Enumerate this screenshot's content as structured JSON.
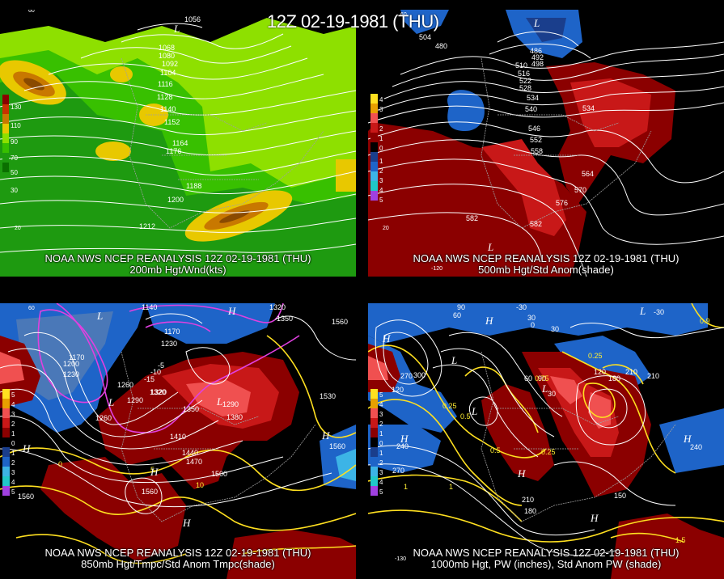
{
  "main_title": "12Z 02-19-1981 (THU)",
  "panels": [
    {
      "id": "p200",
      "caption_1": "NOAA NWS NCEP REANALYSIS 12Z 02-19-1981 (THU)",
      "caption_2": "200mb Hgt/Wnd(kts)",
      "legend": [
        "130",
        "110",
        "90",
        "70",
        "50",
        "30"
      ],
      "contours": [
        "1056",
        "1068",
        "1080",
        "1092",
        "1104",
        "1116",
        "1128",
        "1140",
        "1152",
        "1164",
        "1176",
        "1188",
        "1200",
        "1212"
      ],
      "highs_lows": [
        "L"
      ],
      "lat_lon": [
        "60",
        "20"
      ]
    },
    {
      "id": "p500",
      "caption_1": "NOAA NWS NCEP REANALYSIS 12Z 02-19-1981 (THU)",
      "caption_2": "500mb Hgt/Std Anom(shade)",
      "legend": [
        "4",
        "3",
        "2",
        "1",
        "0",
        "1",
        "2",
        "3",
        "4",
        "5"
      ],
      "contours": [
        "504",
        "480",
        "486",
        "492",
        "498",
        "510",
        "516",
        "522",
        "528",
        "534",
        "534",
        "540",
        "546",
        "552",
        "558",
        "564",
        "570",
        "576",
        "582",
        "582"
      ],
      "highs_lows": [
        "L",
        "L"
      ],
      "lat_lon": [
        "60",
        "20",
        "-120"
      ]
    },
    {
      "id": "p850",
      "caption_1": "NOAA NWS NCEP REANALYSIS 12Z 02-19-1981 (THU)",
      "caption_2": "850mb Hgt/Tmpc/Std Anom Tmpc(shade)",
      "legend": [
        "5",
        "4",
        "3",
        "2",
        "1",
        "0",
        "1",
        "2",
        "3",
        "4",
        "5"
      ],
      "contours": [
        "1140",
        "1170",
        "1170",
        "1200",
        "1230",
        "1230",
        "1260",
        "1290",
        "1320",
        "1320",
        "1350",
        "1380",
        "1410",
        "1440",
        "1470",
        "1500",
        "1530",
        "1560",
        "1560",
        "1560",
        "1560",
        "1350",
        "1320",
        "1260",
        "1290"
      ],
      "temps": [
        "-15",
        "-10",
        "-5",
        "0",
        "5",
        "10"
      ],
      "highs_lows": [
        "H",
        "H",
        "H",
        "H",
        "H",
        "L",
        "L",
        "L"
      ],
      "lat_lon": [
        "60"
      ]
    },
    {
      "id": "p1000",
      "caption_1": "NOAA NWS NCEP REANALYSIS 12Z 02-19-1981 (THU)",
      "caption_2": "1000mb Hgt, PW (inches), Std Anom PW (shade)",
      "legend": [
        "5",
        "4",
        "3",
        "2",
        "1",
        "0",
        "1",
        "2",
        "3",
        "4",
        "5"
      ],
      "contours": [
        "-30",
        "90",
        "60",
        "30",
        "30",
        "0",
        "-30",
        "60",
        "120",
        "180",
        "210",
        "210",
        "240",
        "240",
        "270",
        "300",
        "270",
        "150",
        "210",
        "180",
        "120",
        "90",
        "30",
        "0.25",
        "0.25",
        "0.25",
        "0.5",
        "0.5",
        "0.75",
        "1",
        "1",
        "1.5",
        "0.9"
      ],
      "highs_lows": [
        "H",
        "H",
        "H",
        "H",
        "H",
        "H",
        "L",
        "L",
        "L",
        "L"
      ],
      "lat_lon": [
        "-130"
      ]
    }
  ],
  "colors": {
    "wind_green_light": "#8ee000",
    "wind_green": "#38c000",
    "wind_green_dark": "#1e9a10",
    "wind_yellow": "#e8c800",
    "wind_orange": "#c87800",
    "wind_brown": "#8a4a00",
    "anom_red_dark": "#8b0000",
    "anom_red": "#c81818",
    "anom_red_light": "#f05050",
    "anom_blue_dark": "#1a3e8c",
    "anom_blue": "#1e64c8",
    "anom_cyan": "#3cb4e6",
    "pw_yellow": "#ffe020",
    "temp_magenta": "#e040e0"
  }
}
